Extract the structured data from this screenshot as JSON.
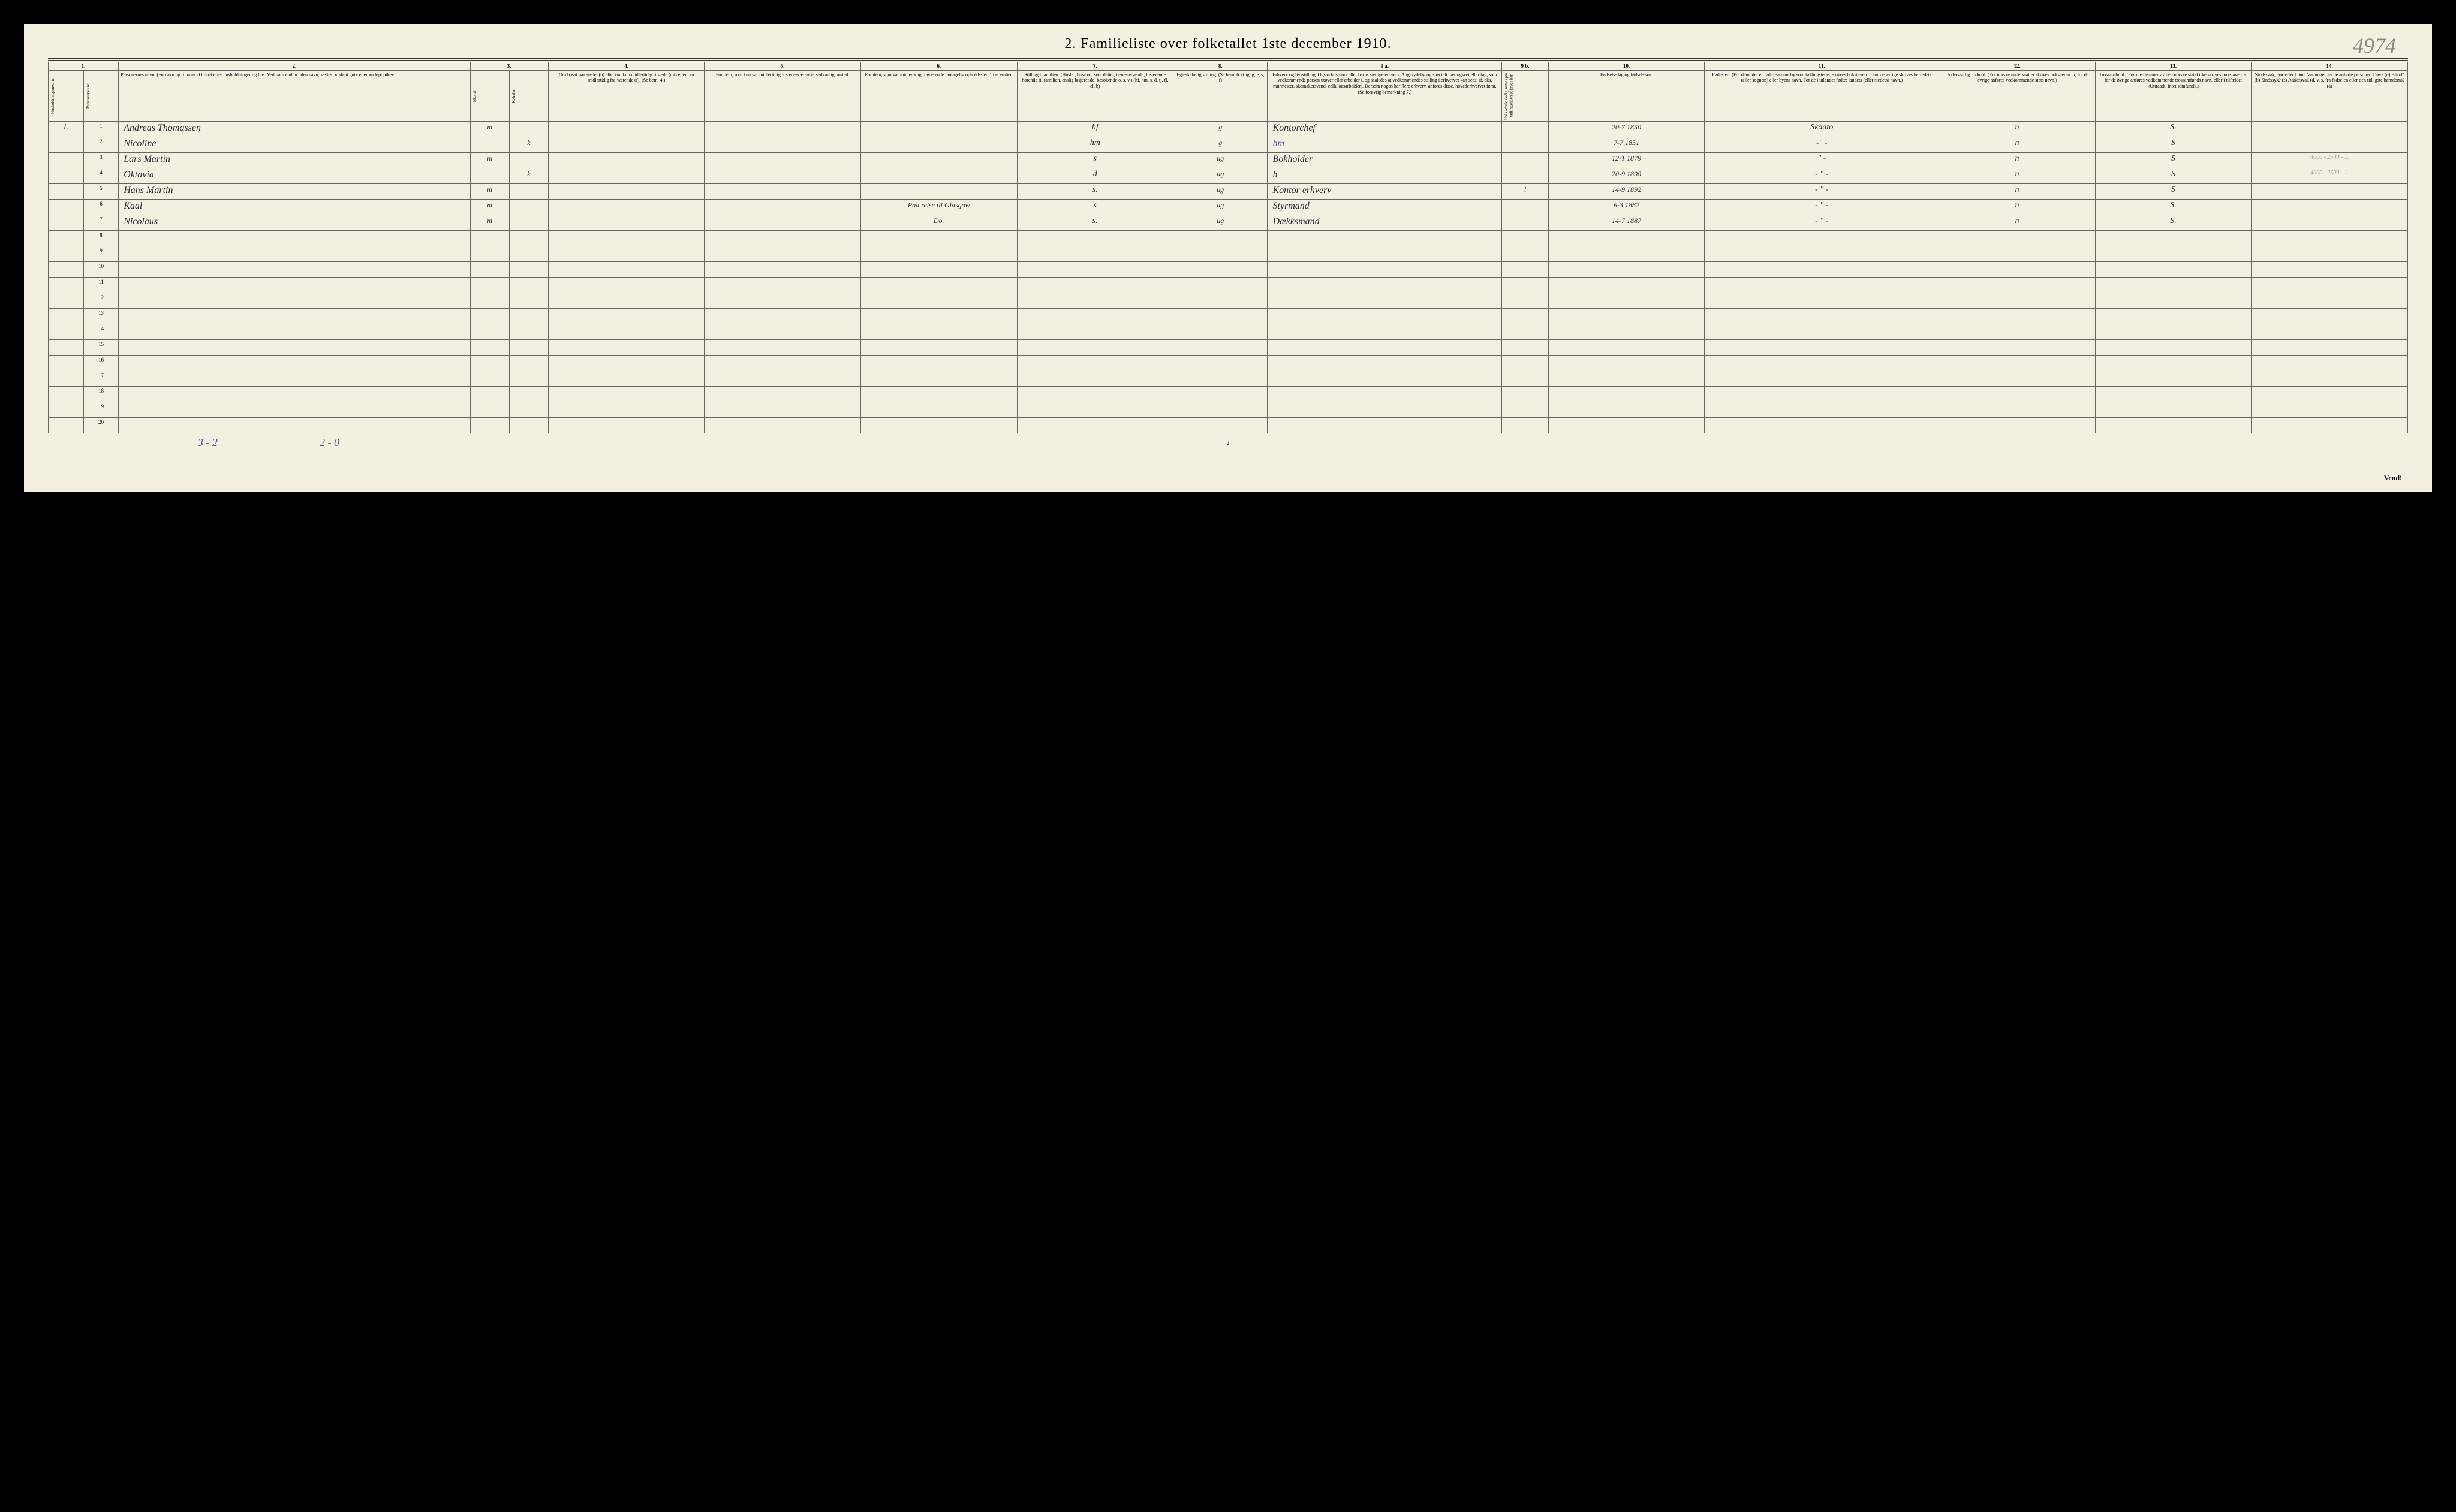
{
  "title": "2.  Familieliste over folketallet 1ste december 1910.",
  "pencil_annotation": "4974",
  "column_numbers": [
    "1.",
    "2.",
    "3.",
    "4.",
    "5.",
    "6.",
    "7.",
    "8.",
    "9 a.",
    "9 b.",
    "10.",
    "11.",
    "12.",
    "13.",
    "14."
  ],
  "headers": {
    "col1a": "Husholdningernes nr.",
    "col1b": "Personernes nr.",
    "col2": "Personernes navn.\n(Fornavn og tilnavn.)\nOrdnet efter husholdninger og hus.\nVed barn endnu uden navn, sættes: «udøpt gut» eller «udøpt pike».",
    "col3a": "Kjøn.",
    "col3b": "Mænd.",
    "col3c": "Kvinder.",
    "col3d": "m. k.",
    "col4": "Om bosat paa stedet (b) eller om kun midlertidig tilstede (mt) eller om midlertidig fra-værende (f). (Se bem. 4.)",
    "col5": "For dem, som kun var midlertidig tilstede-værende:\nsedvanlig bosted.",
    "col6": "For dem, som var midlertidig fraværende:\nantagelig opholdssted 1 december.",
    "col7": "Stilling i familien.\n(Husfar, husmor, søn, datter, tjenestetyende, losjerende hørende til familien, enslig losjerende, besøkende o. s. v.)\n(hf, hm, s, d, tj, fl, el, b)",
    "col8": "Egteskabelig stilling.\n(Se bem. 6.)\n(ug, g, e, s, f)",
    "col9a": "Erhverv og livsstilling.\nOgsaa husmors eller barns særlige erhverv. Angi tydelig og specielt næringsvei eller fag, som vedkommende person utøver eller arbeider i, og saaledes at vedkommendes stilling i erhvervet kan sees, (f. eks. murmester, skomakersvend, celluloasarbeider). Dersom nogen har flere erhverv, anføres disse, hovederhvervet først.\n(Se forøvrig bemerkning 7.)",
    "col9b": "Hvis arbeidsledig sættes paa tællingstiden et kryds her",
    "col10": "Fødsels-dag og fødsels-aar.",
    "col11": "Fødested.\n(For dem, der er født i samme by som tællingstedet, skrives bokstaven: t; for de øvrige skrives herredets (eller sognets) eller byens navn. For de i utlandet fødte: landets (eller stedets) navn.)",
    "col12": "Undersaatlig forhold.\n(For norske undersaatter skrives bokstaven: n; for de øvrige anføres vedkommende stats navn.)",
    "col13": "Trossamfund.\n(For medlemmer av den norske statskirke skrives bokstaven: s; for de øvrige anføres vedkommende trossamfunds navn, eller i tilfælde: «Uttraadt, intet samfund».)",
    "col14": "Sindssvak, døv eller blind.\nVar nogen av de anførte personer:\nDøv? (d)\nBlind? (b)\nSindssyk? (s)\nAandssvak (d. v. s. fra fødselen eller den tidligste barndom)? (a)"
  },
  "rows": [
    {
      "household": "1.",
      "person": "1",
      "name": "Andreas Thomassen",
      "sex": "m",
      "family_position": "hf",
      "marital": "g",
      "occupation": "Kontorchef",
      "birth_date": "20-7 1850",
      "birthplace": "Skaato",
      "nationality": "n",
      "religion": "S."
    },
    {
      "person": "2",
      "name": "Nicoline",
      "sex": "k",
      "family_position": "hm",
      "marital": "g",
      "occupation": "hm",
      "occupation_class": "blue-ink",
      "birth_date": "7-7 1851",
      "birthplace": "-\" -",
      "nationality": "n",
      "religion": "S"
    },
    {
      "person": "3",
      "name": "Lars Martin",
      "sex": "m",
      "family_position": "s",
      "marital": "ug",
      "occupation": "Bokholder",
      "birth_date": "12-1 1879",
      "birthplace": "\" -",
      "nationality": "n",
      "religion": "S",
      "margin_note": "4000 - 2500 - 1."
    },
    {
      "person": "4",
      "name": "Oktavia",
      "sex": "k",
      "family_position": "d",
      "marital": "ug",
      "occupation": "h",
      "birth_date": "20-9 1890",
      "birthplace": "- \" -",
      "nationality": "n",
      "religion": "S",
      "margin_note": "4000 - 2500 - 1."
    },
    {
      "person": "5",
      "name": "Hans Martin",
      "sex": "m",
      "family_position": "s.",
      "marital": "ug",
      "occupation": "Kontor erhverv",
      "ledig": "l",
      "birth_date": "14-9 1892",
      "birthplace": "- \" -",
      "nationality": "n",
      "religion": "S"
    },
    {
      "person": "6",
      "name": "Kaal",
      "sex": "m",
      "absence": "Paa reise til Glasgow",
      "family_position": "s",
      "marital": "ug",
      "occupation": "Styrmand",
      "birth_date": "6-3 1882",
      "birthplace": "- \" -",
      "nationality": "n",
      "religion": "S."
    },
    {
      "person": "7",
      "name": "Nicolaus",
      "sex": "m",
      "absence": "Do.",
      "family_position": "s.",
      "marital": "ug",
      "occupation": "Dækksmand",
      "birth_date": "14-7 1887",
      "birthplace": "- \" -",
      "nationality": "n",
      "religion": "S."
    }
  ],
  "empty_rows": [
    8,
    9,
    10,
    11,
    12,
    13,
    14,
    15,
    16,
    17,
    18,
    19,
    20
  ],
  "bottom_notes": {
    "note1": "3 - 2",
    "note2": "2 - 0"
  },
  "page_number": "2",
  "vend": "Vend!"
}
